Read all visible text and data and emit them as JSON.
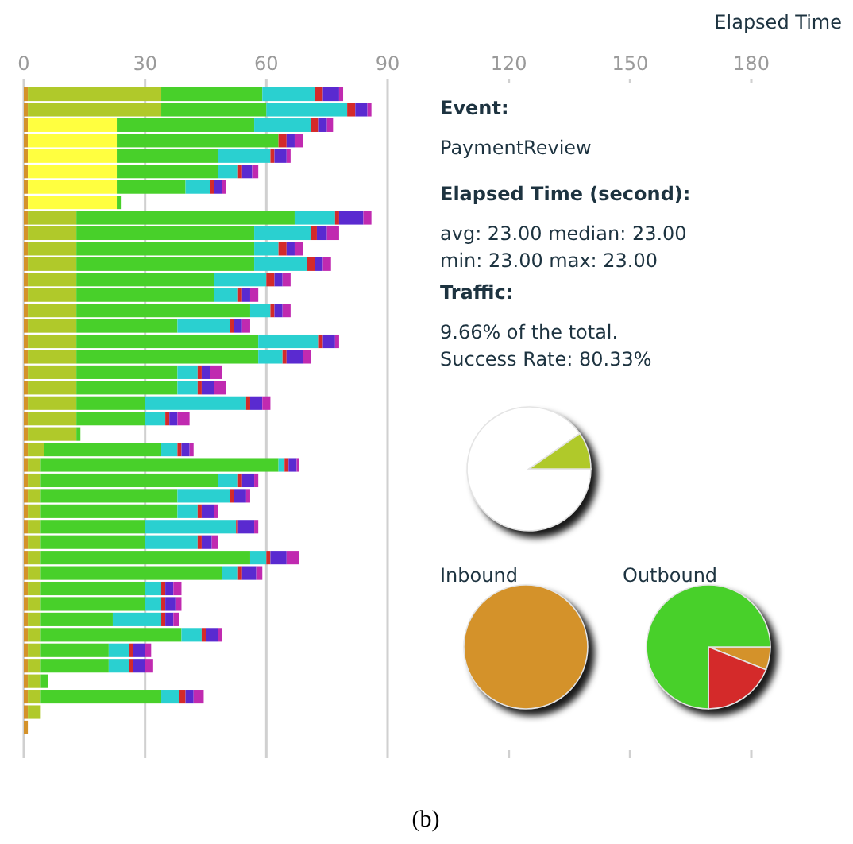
{
  "chart_data": [
    {
      "type": "bar",
      "orientation": "horizontal",
      "stacked": true,
      "xlabel": "Elapsed Time",
      "xlim": [
        0,
        180
      ],
      "xticks": [
        0,
        30,
        60,
        90,
        120,
        150,
        180
      ],
      "grid": "x",
      "tick_labels": "x",
      "annotations": [
        "(b)"
      ],
      "categories": [
        null,
        null,
        null,
        null,
        null,
        null,
        null,
        null,
        null,
        null,
        null,
        null,
        null,
        null,
        null,
        null,
        null,
        null,
        null,
        null,
        null,
        null,
        null,
        null,
        null,
        null,
        null,
        null,
        null,
        null,
        null,
        null,
        null,
        null,
        null,
        null,
        null,
        null,
        null,
        null,
        null,
        null
      ],
      "series": [
        {
          "color": "#d4922a",
          "values": [
            1,
            1,
            1,
            1,
            1,
            1,
            1,
            1,
            1,
            1,
            1,
            1,
            1,
            1,
            1,
            1,
            1,
            1,
            1,
            1,
            1,
            1,
            1,
            1,
            1,
            1,
            1,
            1,
            1,
            1,
            1,
            1,
            1,
            1,
            1,
            1,
            1,
            1,
            1,
            1,
            1,
            1
          ]
        },
        {
          "color": "#ffff40",
          "values": [
            null,
            null,
            22,
            22,
            22,
            22,
            22,
            22,
            null,
            null,
            null,
            null,
            null,
            null,
            null,
            null,
            null,
            null,
            null,
            null,
            null,
            null,
            null,
            null,
            null,
            null,
            null,
            null,
            null,
            null,
            null,
            null,
            null,
            null,
            null,
            null,
            null,
            null,
            null,
            null,
            null,
            null
          ]
        },
        {
          "color": "#b0c92a",
          "values": [
            33,
            33,
            null,
            null,
            null,
            null,
            null,
            null,
            12,
            12,
            12,
            12,
            12,
            12,
            12,
            12,
            12,
            12,
            12,
            12,
            12,
            12,
            12,
            4,
            3,
            3,
            3,
            3,
            3,
            3,
            3,
            3,
            3,
            3,
            3,
            3,
            3,
            3,
            3,
            3,
            3,
            null
          ]
        },
        {
          "color": "#48d02a",
          "values": [
            25,
            26,
            34,
            40,
            25,
            25,
            17,
            1,
            54,
            44,
            44,
            44,
            34,
            34,
            43,
            25,
            45,
            45,
            25,
            25,
            17,
            17,
            1,
            29,
            59,
            44,
            34,
            34,
            26,
            26,
            52,
            45,
            26,
            26,
            18,
            35,
            17,
            17,
            2,
            30,
            null,
            null
          ]
        },
        {
          "color": "#2ad0d0",
          "values": [
            13,
            20,
            14,
            null,
            13,
            5,
            6,
            null,
            10,
            14,
            6,
            13,
            13,
            6,
            5,
            13,
            15,
            6,
            5,
            5,
            25,
            5,
            null,
            4,
            1.5,
            5,
            13,
            5,
            22.5,
            13,
            4,
            4,
            4,
            4,
            12,
            5,
            5,
            5,
            null,
            4.5,
            null,
            null
          ]
        },
        {
          "color": "#d42a2a",
          "values": [
            2,
            2,
            2,
            2,
            1,
            1,
            1,
            null,
            1,
            1.5,
            2,
            2,
            2,
            1,
            1,
            1,
            1,
            1,
            1,
            1,
            1,
            1,
            null,
            1,
            1,
            1,
            1,
            1,
            0.5,
            1,
            1,
            1,
            1,
            1,
            1,
            1,
            1,
            1,
            null,
            1.5,
            null,
            null
          ]
        },
        {
          "color": "#5a2ad0",
          "values": [
            4,
            3,
            2,
            2,
            3,
            2.5,
            2,
            null,
            6,
            2.5,
            2,
            2,
            2,
            2,
            2,
            2,
            3,
            4,
            2,
            3,
            3,
            2,
            null,
            2,
            2,
            3,
            3,
            3,
            4,
            2.5,
            4,
            3.5,
            2,
            2.5,
            2,
            3,
            3,
            3,
            null,
            2,
            null,
            null
          ]
        },
        {
          "color": "#c02ab0",
          "values": [
            1,
            1,
            1.5,
            2,
            1,
            1.5,
            1,
            null,
            2,
            3,
            2,
            2,
            2,
            2,
            2,
            2,
            1,
            2,
            3,
            3,
            2,
            3,
            null,
            1,
            0.5,
            1,
            1,
            1,
            1,
            1.5,
            3,
            1.5,
            2,
            1.5,
            1.5,
            1,
            1.5,
            2,
            null,
            2.5,
            null,
            null
          ]
        }
      ]
    },
    {
      "type": "other",
      "title": "Event:",
      "subtitle": "PaymentReview"
    },
    {
      "type": "other",
      "title": "Elapsed Time (second):",
      "annotations": [
        "avg: 23.00 median: 23.00",
        "min: 23.00 max: 23.00"
      ]
    },
    {
      "type": "other",
      "title": "Traffic:",
      "annotations": [
        "9.66% of the total.",
        "Success Rate: 80.33%"
      ]
    },
    {
      "type": "pie",
      "categories": [
        null,
        null
      ],
      "values": [
        90.34,
        9.66
      ],
      "colors": [
        "#ffffff",
        "#b0c92a"
      ]
    },
    {
      "type": "pie",
      "title": "Inbound",
      "categories": [
        null
      ],
      "values": [
        100
      ],
      "colors": [
        "#d4922a"
      ]
    },
    {
      "type": "pie",
      "title": "Outbound",
      "categories": [
        null,
        null,
        null
      ],
      "values": [
        6,
        19,
        75
      ],
      "colors": [
        "#d4922a",
        "#d42a2a",
        "#48d02a"
      ]
    }
  ]
}
